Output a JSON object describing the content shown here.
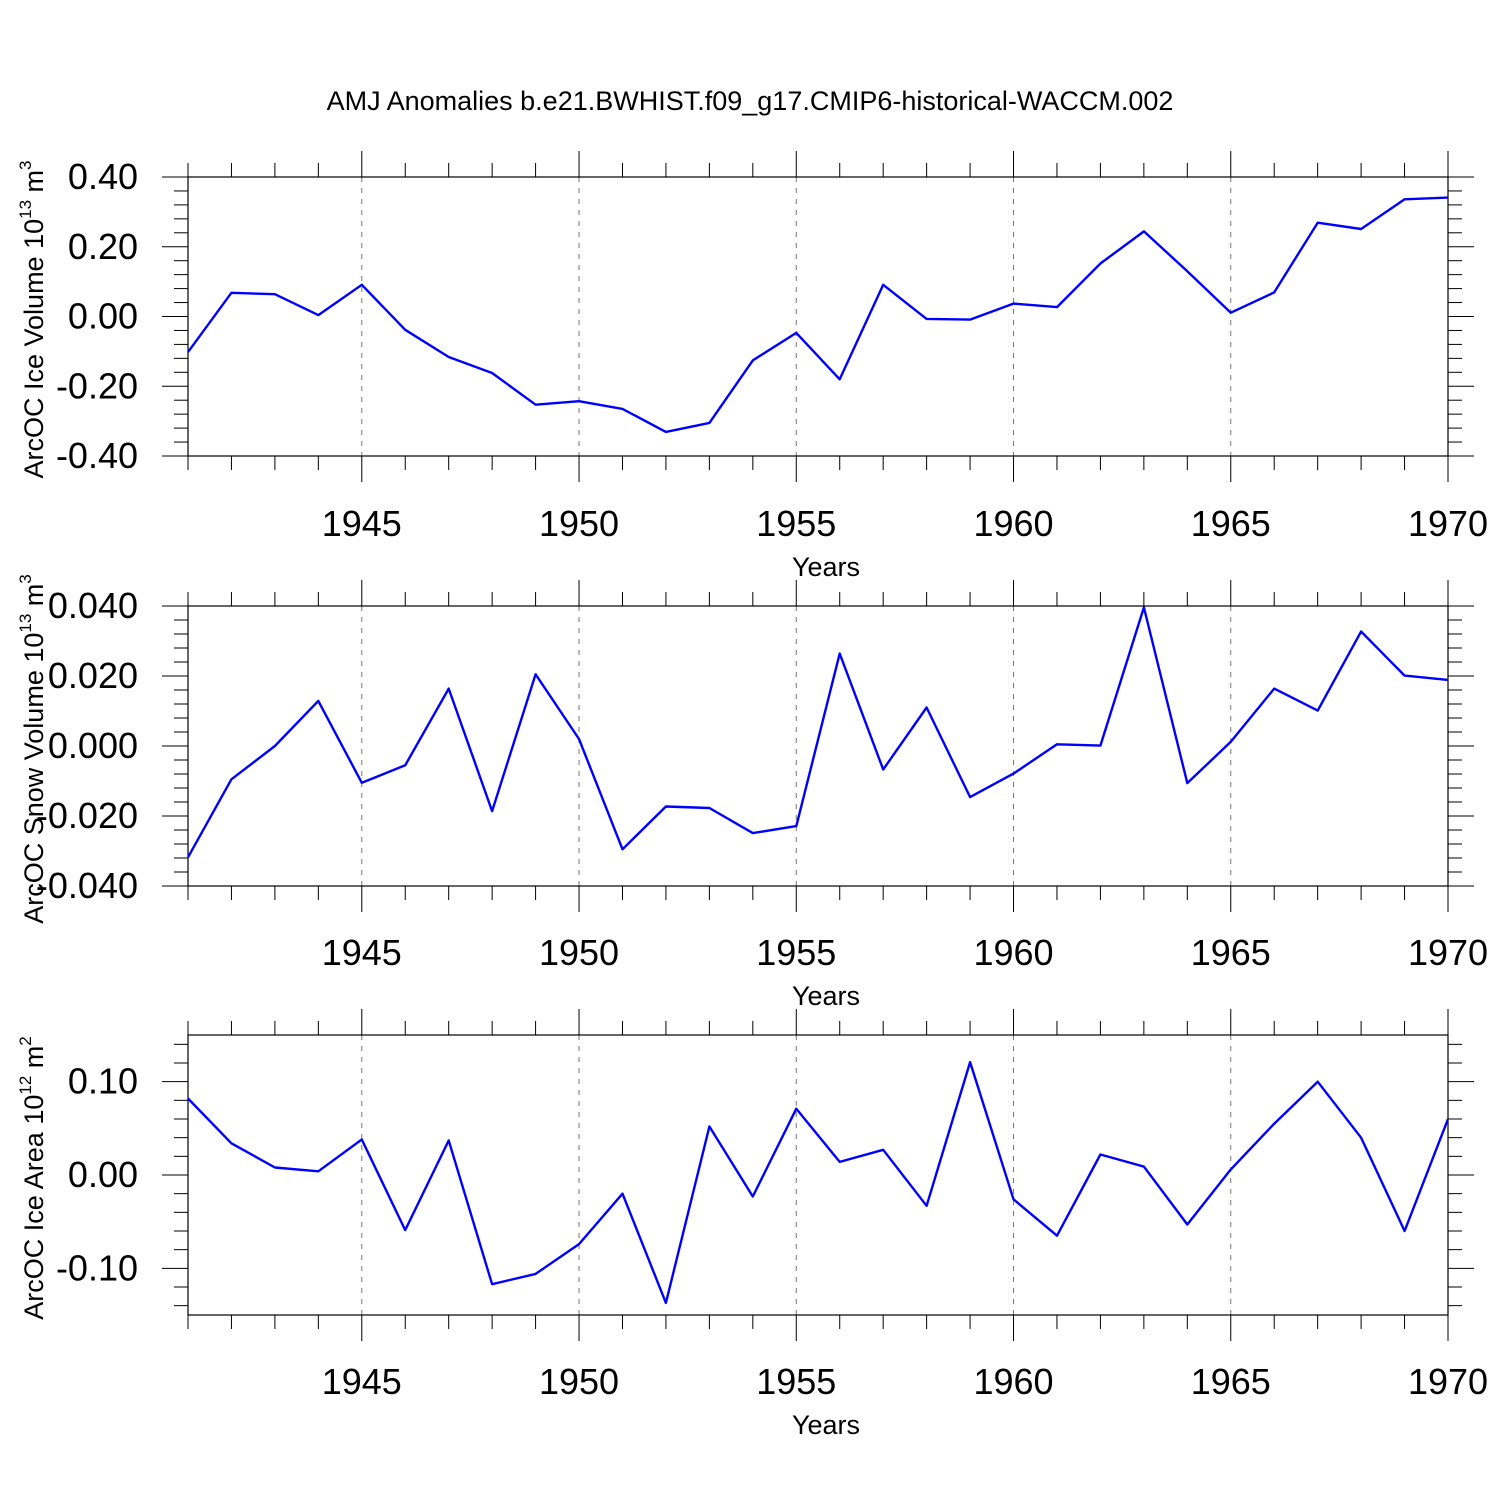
{
  "title": "AMJ Anomalies b.e21.BWHIST.f09_g17.CMIP6-historical-WACCM.002",
  "colors": {
    "line": "#0000ff",
    "axis": "#000000",
    "grid": "#777777",
    "background": "#ffffff"
  },
  "chart_data": [
    {
      "type": "line",
      "ylabel_text": "ArcOC Ice Volume 10",
      "ylabel_exp": "13",
      "ylabel_unit": " m",
      "ylabel_unit_exp": "3",
      "xlabel": "Years",
      "xlim": [
        1941,
        1970
      ],
      "ylim": [
        -0.4,
        0.4
      ],
      "yticks": [
        -0.4,
        -0.2,
        0.0,
        0.2,
        0.4
      ],
      "ytick_labels": [
        "-0.40",
        "-0.20",
        "0.00",
        "0.20",
        "0.40"
      ],
      "xticks": [
        1945,
        1950,
        1955,
        1960,
        1965,
        1970
      ],
      "xtick_labels": [
        "1945",
        "1950",
        "1955",
        "1960",
        "1965",
        "1970"
      ],
      "grid_x": true,
      "series": [
        {
          "name": "ArcOC Ice Volume",
          "x": [
            1941,
            1942,
            1943,
            1944,
            1945,
            1946,
            1947,
            1948,
            1949,
            1950,
            1951,
            1952,
            1953,
            1954,
            1955,
            1956,
            1957,
            1958,
            1959,
            1960,
            1961,
            1962,
            1963,
            1964,
            1965,
            1966,
            1967,
            1968,
            1969,
            1970
          ],
          "values": [
            -0.102,
            0.068,
            0.064,
            0.004,
            0.091,
            -0.038,
            -0.116,
            -0.162,
            -0.253,
            -0.243,
            -0.265,
            -0.331,
            -0.305,
            -0.126,
            -0.047,
            -0.18,
            0.091,
            -0.007,
            -0.009,
            0.037,
            0.027,
            0.152,
            0.244,
            0.13,
            0.011,
            0.069,
            0.269,
            0.251,
            0.336,
            0.341
          ]
        }
      ]
    },
    {
      "type": "line",
      "ylabel_text": "ArcOC Snow Volume 10",
      "ylabel_exp": "13",
      "ylabel_unit": " m",
      "ylabel_unit_exp": "3",
      "xlabel": "Years",
      "xlim": [
        1941,
        1970
      ],
      "ylim": [
        -0.04,
        0.04
      ],
      "yticks": [
        -0.04,
        -0.02,
        0.0,
        0.02,
        0.04
      ],
      "ytick_labels": [
        "-0.040",
        "-0.020",
        "0.000",
        "0.020",
        "0.040"
      ],
      "xticks": [
        1945,
        1950,
        1955,
        1960,
        1965,
        1970
      ],
      "xtick_labels": [
        "1945",
        "1950",
        "1955",
        "1960",
        "1965",
        "1970"
      ],
      "grid_x": true,
      "series": [
        {
          "name": "ArcOC Snow Volume",
          "x": [
            1941,
            1942,
            1943,
            1944,
            1945,
            1946,
            1947,
            1948,
            1949,
            1950,
            1951,
            1952,
            1953,
            1954,
            1955,
            1956,
            1957,
            1958,
            1959,
            1960,
            1961,
            1962,
            1963,
            1964,
            1965,
            1966,
            1967,
            1968,
            1969,
            1970
          ],
          "values": [
            -0.0318,
            -0.0095,
            0.0,
            0.0129,
            -0.0105,
            -0.0055,
            0.0164,
            -0.0186,
            0.0205,
            0.002,
            -0.0295,
            -0.0173,
            -0.0177,
            -0.0249,
            -0.0229,
            0.0264,
            -0.0067,
            0.011,
            -0.0146,
            -0.0079,
            0.0005,
            0.0001,
            0.0396,
            -0.0106,
            0.0012,
            0.0164,
            0.0101,
            0.0327,
            0.0201,
            0.0189
          ]
        }
      ]
    },
    {
      "type": "line",
      "ylabel_text": "ArcOC Ice Area 10",
      "ylabel_exp": "12",
      "ylabel_unit": " m",
      "ylabel_unit_exp": "2",
      "xlabel": "Years",
      "xlim": [
        1941,
        1970
      ],
      "ylim": [
        -0.15,
        0.15
      ],
      "yticks": [
        -0.1,
        0.0,
        0.1
      ],
      "ytick_labels": [
        "-0.10",
        "0.00",
        "0.10"
      ],
      "xticks": [
        1945,
        1950,
        1955,
        1960,
        1965,
        1970
      ],
      "xtick_labels": [
        "1945",
        "1950",
        "1955",
        "1960",
        "1965",
        "1970"
      ],
      "grid_x": true,
      "series": [
        {
          "name": "ArcOC Ice Area",
          "x": [
            1941,
            1942,
            1943,
            1944,
            1945,
            1946,
            1947,
            1948,
            1949,
            1950,
            1951,
            1952,
            1953,
            1954,
            1955,
            1956,
            1957,
            1958,
            1959,
            1960,
            1961,
            1962,
            1963,
            1964,
            1965,
            1966,
            1967,
            1968,
            1969,
            1970
          ],
          "values": [
            0.082,
            0.034,
            0.008,
            0.004,
            0.038,
            -0.059,
            0.037,
            -0.117,
            -0.106,
            -0.074,
            -0.02,
            -0.137,
            0.052,
            -0.023,
            0.071,
            0.014,
            0.027,
            -0.033,
            0.121,
            -0.026,
            -0.065,
            0.022,
            0.009,
            -0.053,
            0.006,
            0.055,
            0.1,
            0.04,
            -0.06,
            0.06
          ]
        }
      ]
    }
  ]
}
